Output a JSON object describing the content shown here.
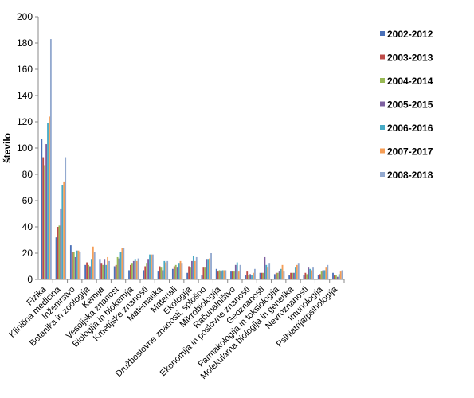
{
  "chart_data": {
    "type": "bar",
    "ylabel": "število",
    "xlabel": "",
    "ylim": [
      0,
      200
    ],
    "yticks": [
      0,
      20,
      40,
      60,
      80,
      100,
      120,
      140,
      160,
      180,
      200
    ],
    "grid": false,
    "legend_position": "right",
    "categories": [
      "Fizika",
      "Klinična medicina",
      "Inženirstvo",
      "Botanika in zoologija",
      "Kemija",
      "Vesoljska znanost",
      "Biologija in biokemija",
      "Kmetijske znanosti",
      "Matematika",
      "Materiali",
      "Ekologija",
      "Družboslovne znanosti, splošno",
      "Mikrobiologija",
      "Računalništvo",
      "Ekonomija in poslovne znanosti",
      "Geoznanosti",
      "Farmakologija in toksiologija",
      "Molekularna biologija in genetika",
      "Nevroznanosti",
      "Imunologija",
      "Psihiatrija/psihologija"
    ],
    "series": [
      {
        "name": "2002-2012",
        "color": "#4a70b8",
        "values": [
          107,
          32,
          26,
          11,
          15,
          10,
          7,
          7,
          6,
          8,
          5,
          3,
          8,
          6,
          3,
          5,
          4,
          3,
          3,
          3,
          5
        ]
      },
      {
        "name": "2003-2013",
        "color": "#be4b48",
        "values": [
          93,
          40,
          21,
          13,
          12,
          11,
          11,
          10,
          10,
          10,
          10,
          9,
          6,
          6,
          6,
          5,
          5,
          5,
          5,
          4,
          3
        ]
      },
      {
        "name": "2004-2014",
        "color": "#98b954",
        "values": [
          87,
          41,
          21,
          11,
          11,
          17,
          12,
          12,
          9,
          11,
          9,
          9,
          7,
          6,
          3,
          5,
          5,
          5,
          4,
          6,
          3
        ]
      },
      {
        "name": "2005-2015",
        "color": "#7d60a0",
        "values": [
          103,
          54,
          17,
          10,
          15,
          16,
          14,
          15,
          7,
          9,
          14,
          15,
          6,
          11,
          4,
          17,
          6,
          5,
          9,
          7,
          2
        ]
      },
      {
        "name": "2006-2016",
        "color": "#46aac5",
        "values": [
          119,
          72,
          22,
          15,
          11,
          21,
          15,
          19,
          14,
          12,
          18,
          15,
          7,
          13,
          3,
          11,
          8,
          9,
          8,
          7,
          4
        ]
      },
      {
        "name": "2007-2017",
        "color": "#f59d56",
        "values": [
          124,
          74,
          22,
          25,
          17,
          24,
          14,
          19,
          13,
          14,
          14,
          16,
          7,
          6,
          5,
          9,
          11,
          11,
          7,
          9,
          6
        ]
      },
      {
        "name": "2008-2018",
        "color": "#93a9cf",
        "values": [
          183,
          93,
          21,
          21,
          14,
          24,
          16,
          19,
          14,
          12,
          17,
          20,
          7,
          11,
          8,
          12,
          6,
          12,
          9,
          11,
          7
        ]
      }
    ]
  }
}
